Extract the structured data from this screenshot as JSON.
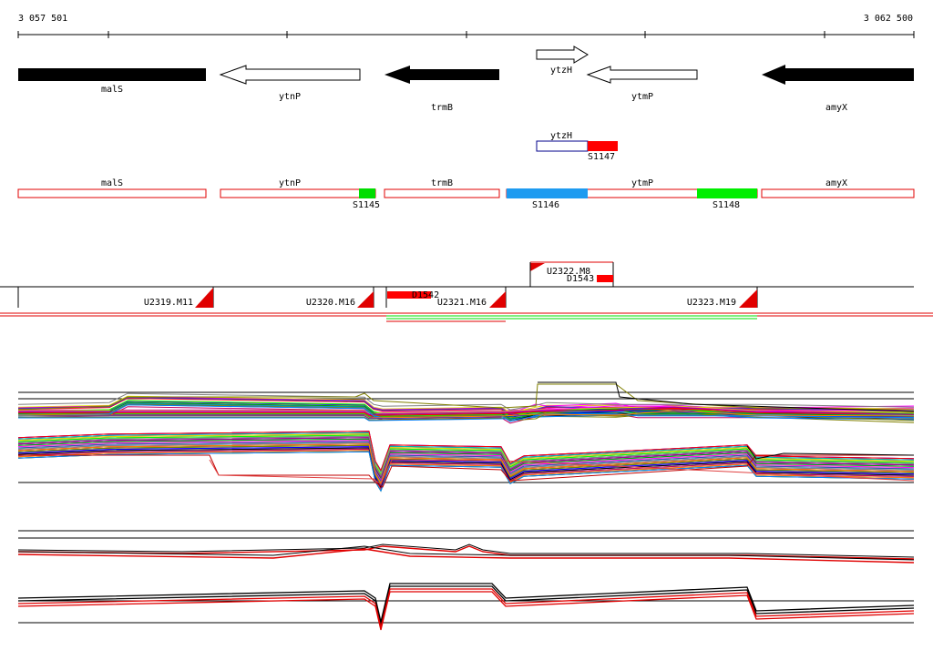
{
  "ruler": {
    "start": "3 057 501",
    "end": "3 062 500"
  },
  "genes": [
    "malS",
    "ytnP",
    "trmB",
    "ytzH",
    "ytmP",
    "amyX"
  ],
  "upstream_track": {
    "gene": "ytzH",
    "feature": "S1147"
  },
  "gene_track": {
    "genes": [
      "malS",
      "ytnP",
      "trmB",
      "ytmP",
      "amyX"
    ],
    "features": [
      "S1145",
      "S1146",
      "S1148"
    ]
  },
  "segments": {
    "top": [
      "U2322.M8",
      "D1543"
    ],
    "bottom": [
      "U2319.M11",
      "U2320.M16",
      "D1542",
      "U2321.M16",
      "U2323.M19"
    ]
  }
}
